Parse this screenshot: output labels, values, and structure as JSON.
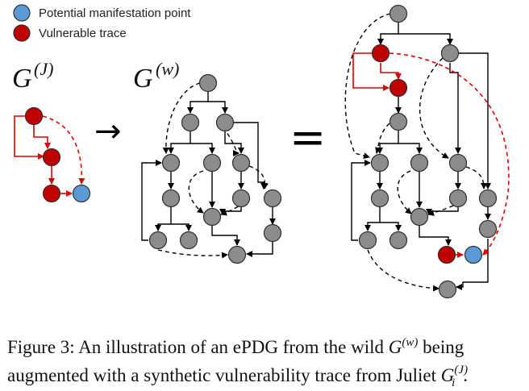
{
  "legend": {
    "items": [
      {
        "label": "Potential manifestation point",
        "color": "#5b9bd5"
      },
      {
        "label": "Vulnerable trace",
        "color": "#c00000"
      }
    ]
  },
  "graphs": {
    "juliet": {
      "label": "G",
      "sup": "(J)"
    },
    "wild": {
      "label": "G",
      "sup": "(w)"
    }
  },
  "operators": {
    "arrow": "→",
    "equals": "="
  },
  "caption": {
    "line1_a": "Figure 3: An illustration of an ePDG from the wild ",
    "line1_g": "G",
    "line1_sup": "(w)",
    "line1_b": " being",
    "line2_a": "augmented with a synthetic vulnerability trace from Juliet ",
    "line2_g": "G",
    "line2_sup": "(J)",
    "line2_sub": "i",
    "line2_b": "."
  },
  "colors": {
    "node_gray": "#8c8c8c",
    "node_red": "#c00000",
    "node_blue": "#5b9bd5",
    "edge_red": "#e00000",
    "edge_black": "#000000"
  }
}
